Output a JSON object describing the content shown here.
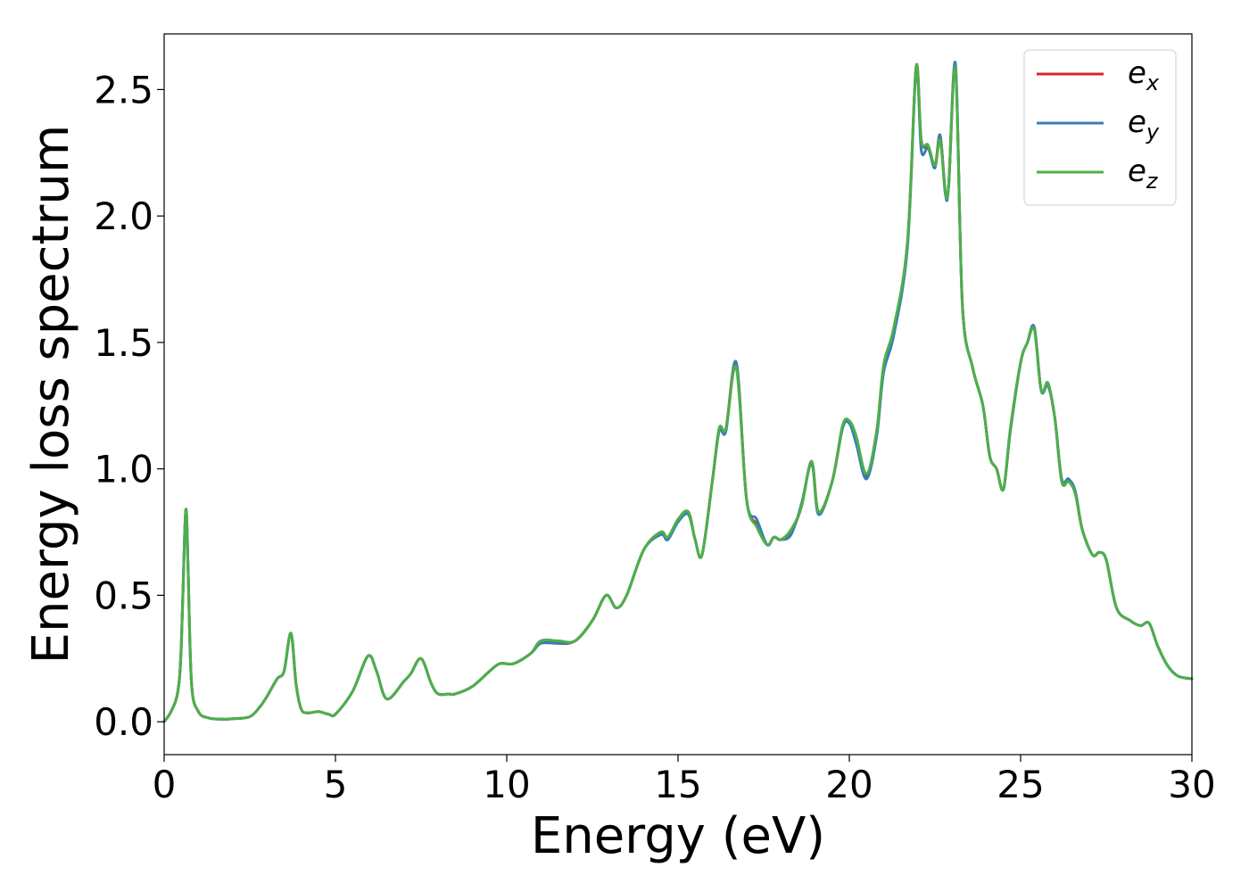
{
  "chart_data": {
    "type": "line",
    "title": "",
    "xlabel": "Energy (eV)",
    "ylabel": "Energy loss spectrum",
    "xlim": [
      0,
      30
    ],
    "ylim": [
      -0.13,
      2.72
    ],
    "grid": false,
    "legend_position": "top-right",
    "x_ticks": [
      0,
      5,
      10,
      15,
      20,
      25,
      30
    ],
    "x_tick_labels": [
      "0",
      "5",
      "10",
      "15",
      "20",
      "25",
      "30"
    ],
    "y_ticks": [
      0.0,
      0.5,
      1.0,
      1.5,
      2.0,
      2.5
    ],
    "y_tick_labels": [
      "0.0",
      "0.5",
      "1.0",
      "1.5",
      "2.0",
      "2.5"
    ],
    "x": [
      0,
      0.2,
      0.4,
      0.5,
      0.6,
      0.65,
      0.7,
      0.8,
      1.0,
      1.3,
      1.7,
      2.0,
      2.5,
      2.8,
      3.0,
      3.3,
      3.5,
      3.7,
      3.85,
      4.0,
      4.2,
      4.5,
      4.8,
      5.0,
      5.5,
      5.95,
      6.2,
      6.5,
      7.0,
      7.2,
      7.5,
      7.8,
      8.0,
      8.3,
      8.5,
      9.0,
      9.5,
      9.8,
      10.2,
      10.7,
      11.0,
      11.5,
      12.0,
      12.5,
      12.9,
      13.2,
      13.5,
      14.0,
      14.5,
      14.7,
      15.0,
      15.3,
      15.5,
      15.7,
      16.0,
      16.2,
      16.4,
      16.7,
      17.0,
      17.3,
      17.6,
      17.8,
      18.0,
      18.3,
      18.6,
      18.9,
      19.1,
      19.5,
      19.8,
      20.0,
      20.2,
      20.5,
      20.8,
      21.0,
      21.3,
      21.7,
      21.95,
      22.1,
      22.3,
      22.5,
      22.65,
      22.8,
      22.9,
      23.1,
      23.3,
      23.6,
      23.9,
      24.1,
      24.3,
      24.5,
      24.7,
      25.0,
      25.2,
      25.4,
      25.6,
      25.8,
      26.0,
      26.2,
      26.4,
      26.6,
      26.8,
      27.1,
      27.3,
      27.5,
      27.8,
      28.2,
      28.5,
      28.75,
      29.0,
      29.3,
      29.6,
      30.0
    ],
    "series": [
      {
        "name": "e_x",
        "color": "#d62728",
        "y": [
          0.0,
          0.04,
          0.12,
          0.3,
          0.75,
          0.83,
          0.6,
          0.15,
          0.04,
          0.015,
          0.01,
          0.012,
          0.02,
          0.06,
          0.1,
          0.17,
          0.2,
          0.35,
          0.15,
          0.05,
          0.035,
          0.04,
          0.03,
          0.03,
          0.12,
          0.26,
          0.2,
          0.09,
          0.16,
          0.19,
          0.25,
          0.15,
          0.11,
          0.11,
          0.11,
          0.14,
          0.2,
          0.23,
          0.23,
          0.27,
          0.32,
          0.31,
          0.32,
          0.4,
          0.5,
          0.45,
          0.5,
          0.68,
          0.75,
          0.72,
          0.8,
          0.83,
          0.72,
          0.66,
          0.95,
          1.15,
          1.16,
          1.42,
          0.88,
          0.78,
          0.7,
          0.73,
          0.72,
          0.75,
          0.85,
          1.03,
          0.83,
          0.95,
          1.16,
          1.19,
          1.12,
          0.97,
          1.15,
          1.4,
          1.55,
          1.9,
          2.59,
          2.3,
          2.27,
          2.2,
          2.32,
          2.1,
          2.12,
          2.59,
          1.65,
          1.4,
          1.25,
          1.05,
          1.0,
          0.92,
          1.15,
          1.42,
          1.5,
          1.56,
          1.31,
          1.33,
          1.2,
          0.95,
          0.96,
          0.9,
          0.76,
          0.66,
          0.67,
          0.64,
          0.45,
          0.4,
          0.38,
          0.39,
          0.3,
          0.22,
          0.18,
          0.17
        ]
      },
      {
        "name": "e_y",
        "color": "#377eb8",
        "y": [
          0.0,
          0.04,
          0.12,
          0.3,
          0.75,
          0.83,
          0.6,
          0.15,
          0.04,
          0.015,
          0.01,
          0.012,
          0.02,
          0.06,
          0.1,
          0.17,
          0.2,
          0.35,
          0.15,
          0.05,
          0.035,
          0.04,
          0.03,
          0.03,
          0.12,
          0.26,
          0.2,
          0.09,
          0.16,
          0.19,
          0.25,
          0.15,
          0.11,
          0.11,
          0.11,
          0.14,
          0.2,
          0.23,
          0.23,
          0.27,
          0.31,
          0.31,
          0.32,
          0.4,
          0.5,
          0.45,
          0.5,
          0.68,
          0.74,
          0.72,
          0.79,
          0.82,
          0.72,
          0.66,
          0.95,
          1.15,
          1.15,
          1.42,
          0.88,
          0.8,
          0.7,
          0.73,
          0.72,
          0.74,
          0.86,
          1.02,
          0.82,
          0.95,
          1.16,
          1.18,
          1.1,
          0.96,
          1.13,
          1.38,
          1.53,
          1.88,
          2.58,
          2.26,
          2.27,
          2.19,
          2.32,
          2.09,
          2.12,
          2.6,
          1.65,
          1.4,
          1.25,
          1.05,
          1.0,
          0.92,
          1.15,
          1.42,
          1.5,
          1.56,
          1.31,
          1.33,
          1.2,
          0.96,
          0.96,
          0.91,
          0.76,
          0.66,
          0.67,
          0.64,
          0.45,
          0.4,
          0.38,
          0.39,
          0.3,
          0.22,
          0.18,
          0.17
        ]
      },
      {
        "name": "e_z",
        "color": "#4daf4a",
        "y": [
          0.0,
          0.04,
          0.12,
          0.3,
          0.75,
          0.83,
          0.6,
          0.15,
          0.04,
          0.015,
          0.01,
          0.012,
          0.02,
          0.06,
          0.1,
          0.17,
          0.2,
          0.35,
          0.15,
          0.05,
          0.035,
          0.04,
          0.03,
          0.03,
          0.12,
          0.26,
          0.2,
          0.09,
          0.16,
          0.19,
          0.25,
          0.15,
          0.11,
          0.11,
          0.11,
          0.14,
          0.2,
          0.23,
          0.23,
          0.27,
          0.32,
          0.32,
          0.32,
          0.4,
          0.5,
          0.45,
          0.5,
          0.68,
          0.75,
          0.73,
          0.8,
          0.83,
          0.72,
          0.66,
          0.95,
          1.16,
          1.16,
          1.4,
          0.88,
          0.77,
          0.7,
          0.73,
          0.72,
          0.76,
          0.85,
          1.03,
          0.83,
          0.95,
          1.17,
          1.19,
          1.13,
          0.98,
          1.15,
          1.41,
          1.56,
          1.9,
          2.59,
          2.3,
          2.28,
          2.2,
          2.3,
          2.1,
          2.12,
          2.58,
          1.65,
          1.4,
          1.25,
          1.05,
          1.0,
          0.92,
          1.16,
          1.42,
          1.5,
          1.55,
          1.31,
          1.34,
          1.2,
          0.95,
          0.95,
          0.9,
          0.76,
          0.66,
          0.67,
          0.64,
          0.45,
          0.4,
          0.38,
          0.39,
          0.3,
          0.22,
          0.18,
          0.17
        ]
      }
    ],
    "legend": [
      {
        "base": "e",
        "sub": "x",
        "color": "#d62728"
      },
      {
        "base": "e",
        "sub": "y",
        "color": "#377eb8"
      },
      {
        "base": "e",
        "sub": "z",
        "color": "#4daf4a"
      }
    ]
  }
}
